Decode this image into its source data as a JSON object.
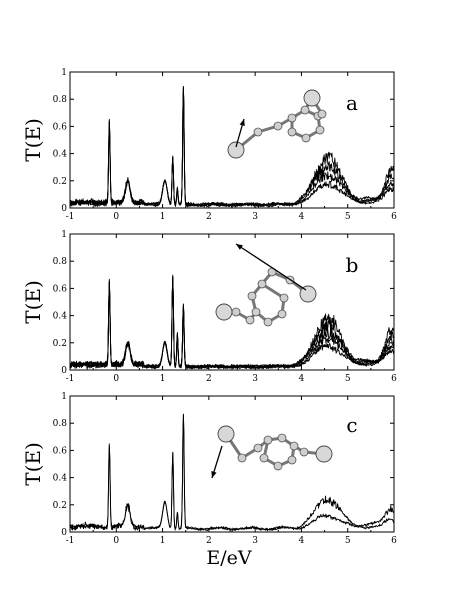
{
  "chart_data": {
    "type": "line",
    "xlabel": "E/eV",
    "ylabel": "T(E)",
    "xlim": [
      -1,
      6
    ],
    "ylim": [
      0,
      1
    ],
    "x_ticks": [
      -1,
      0,
      1,
      2,
      3,
      4,
      5,
      6
    ],
    "y_ticks": [
      0,
      0.2,
      0.4,
      0.6,
      0.8,
      1
    ],
    "panels": [
      {
        "label": "a",
        "num_traces": 4,
        "peaks": [
          {
            "x": -0.15,
            "y": 0.6
          },
          {
            "x": 0.25,
            "y": 0.18
          },
          {
            "x": 1.05,
            "y": 0.18
          },
          {
            "x": 1.22,
            "y": 0.35
          },
          {
            "x": 1.45,
            "y": 0.86
          }
        ],
        "band": {
          "start": 3.3,
          "end": 6.0,
          "max": 0.33
        }
      },
      {
        "label": "b",
        "num_traces": 5,
        "peaks": [
          {
            "x": -0.15,
            "y": 0.61
          },
          {
            "x": 0.25,
            "y": 0.18
          },
          {
            "x": 1.05,
            "y": 0.18
          },
          {
            "x": 1.22,
            "y": 0.66
          },
          {
            "x": 1.45,
            "y": 0.45
          }
        ],
        "band": {
          "start": 3.2,
          "end": 6.0,
          "max": 0.33
        }
      },
      {
        "label": "c",
        "num_traces": 2,
        "peaks": [
          {
            "x": -0.15,
            "y": 0.61
          },
          {
            "x": 0.25,
            "y": 0.17
          },
          {
            "x": 1.05,
            "y": 0.2
          },
          {
            "x": 1.22,
            "y": 0.57
          },
          {
            "x": 1.45,
            "y": 0.84
          }
        ],
        "band": {
          "start": 3.5,
          "end": 6.0,
          "max": 0.2
        }
      }
    ]
  }
}
